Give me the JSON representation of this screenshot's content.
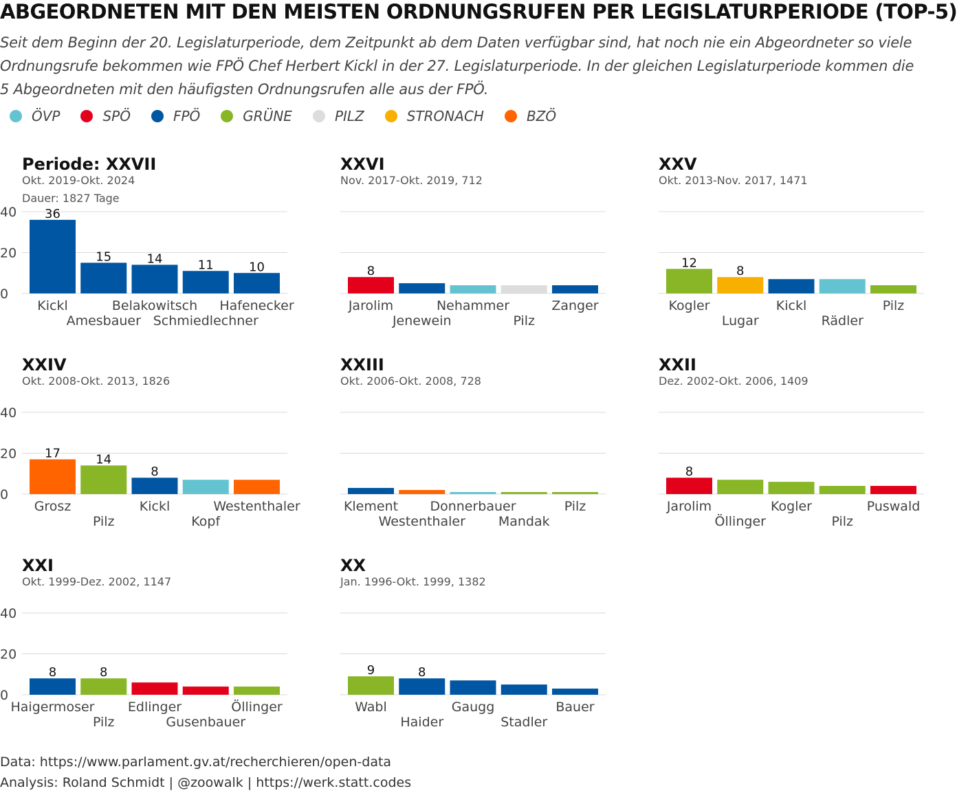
{
  "title": "ABGEORDNETEN MIT DEN MEISTEN ORDNUNGSRUFEN PER LEGISLATURPERIODE (TOP-5)",
  "subtitle": "Seit dem Beginn der 20. Legislaturperiode, dem Zeitpunkt ab dem Daten verfügbar sind, hat noch nie ein Abgeordneter so viele Ordnungsrufe bekommen wie FPÖ Chef Herbert Kickl in der 27. Legislaturperiode. In der gleichen Legislaturperiode kommen die 5 Abgeordneten mit den häufigsten Ordnungsrufen alle aus der FPÖ.",
  "legend": [
    {
      "label": "ÖVP",
      "color": "#63c3d1"
    },
    {
      "label": "SPÖ",
      "color": "#e3001b"
    },
    {
      "label": "FPÖ",
      "color": "#0056a2"
    },
    {
      "label": "GRÜNE",
      "color": "#88b626"
    },
    {
      "label": "PILZ",
      "color": "#dddddd"
    },
    {
      "label": "STRONACH",
      "color": "#f8b000"
    },
    {
      "label": "BZÖ",
      "color": "#ff6400"
    }
  ],
  "footer": {
    "data": "Data: https://www.parlament.gv.at/recherchieren/open-data",
    "analysis": "Analysis: Roland Schmidt | @zoowalk | https://werk.statt.codes"
  },
  "chart_data": [
    {
      "type": "bar",
      "title": "Periode: XXVII",
      "subtitle_lines": [
        "Okt. 2019-Okt. 2024",
        "Dauer: 1827 Tage"
      ],
      "categories": [
        "Kickl",
        "Amesbauer",
        "Belakowitsch",
        "Schmiedlechner",
        "Hafenecker"
      ],
      "values": [
        36,
        15,
        14,
        11,
        10
      ],
      "parties": [
        "FPÖ",
        "FPÖ",
        "FPÖ",
        "FPÖ",
        "FPÖ"
      ],
      "data_labels": [
        "36",
        "15",
        "14",
        "11",
        "10"
      ],
      "yticks": [
        "0",
        "20",
        "40"
      ],
      "ylim": [
        0,
        40
      ],
      "show_yaxis": true
    },
    {
      "type": "bar",
      "title": "XXVI",
      "subtitle_lines": [
        "Nov. 2017-Okt. 2019, 712"
      ],
      "categories": [
        "Jarolim",
        "Jenewein",
        "Nehammer",
        "Pilz",
        "Zanger"
      ],
      "values": [
        8,
        5,
        4,
        4,
        4
      ],
      "parties": [
        "SPÖ",
        "FPÖ",
        "ÖVP",
        "PILZ",
        "FPÖ"
      ],
      "data_labels": [
        "8",
        "",
        "",
        "",
        ""
      ],
      "ylim": [
        0,
        40
      ],
      "show_yaxis": false
    },
    {
      "type": "bar",
      "title": "XXV",
      "subtitle_lines": [
        "Okt. 2013-Nov. 2017, 1471"
      ],
      "categories": [
        "Kogler",
        "Lugar",
        "Kickl",
        "Rädler",
        "Pilz"
      ],
      "values": [
        12,
        8,
        7,
        7,
        4
      ],
      "parties": [
        "GRÜNE",
        "STRONACH",
        "FPÖ",
        "ÖVP",
        "GRÜNE"
      ],
      "data_labels": [
        "12",
        "8",
        "",
        "",
        ""
      ],
      "ylim": [
        0,
        40
      ],
      "show_yaxis": false
    },
    {
      "type": "bar",
      "title": "XXIV",
      "subtitle_lines": [
        "Okt. 2008-Okt. 2013, 1826"
      ],
      "categories": [
        "Grosz",
        "Pilz",
        "Kickl",
        "Kopf",
        "Westenthaler"
      ],
      "values": [
        17,
        14,
        8,
        7,
        7
      ],
      "parties": [
        "BZÖ",
        "GRÜNE",
        "FPÖ",
        "ÖVP",
        "BZÖ"
      ],
      "data_labels": [
        "17",
        "14",
        "8",
        "",
        ""
      ],
      "yticks": [
        "0",
        "20",
        "40"
      ],
      "ylim": [
        0,
        40
      ],
      "show_yaxis": true
    },
    {
      "type": "bar",
      "title": "XXIII",
      "subtitle_lines": [
        "Okt. 2006-Okt. 2008, 728"
      ],
      "categories": [
        "Klement",
        "Westenthaler",
        "Donnerbauer",
        "Mandak",
        "Pilz"
      ],
      "values": [
        3,
        2,
        1,
        1,
        1
      ],
      "parties": [
        "FPÖ",
        "BZÖ",
        "ÖVP",
        "GRÜNE",
        "GRÜNE"
      ],
      "data_labels": [
        "",
        "",
        "",
        "",
        ""
      ],
      "ylim": [
        0,
        40
      ],
      "show_yaxis": false
    },
    {
      "type": "bar",
      "title": "XXII",
      "subtitle_lines": [
        "Dez. 2002-Okt. 2006, 1409"
      ],
      "categories": [
        "Jarolim",
        "Öllinger",
        "Kogler",
        "Pilz",
        "Puswald"
      ],
      "values": [
        8,
        7,
        6,
        4,
        4
      ],
      "parties": [
        "SPÖ",
        "GRÜNE",
        "GRÜNE",
        "GRÜNE",
        "SPÖ"
      ],
      "data_labels": [
        "8",
        "",
        "",
        "",
        ""
      ],
      "ylim": [
        0,
        40
      ],
      "show_yaxis": false
    },
    {
      "type": "bar",
      "title": "XXI",
      "subtitle_lines": [
        "Okt. 1999-Dez. 2002, 1147"
      ],
      "categories": [
        "Haigermoser",
        "Pilz",
        "Edlinger",
        "Gusenbauer",
        "Öllinger"
      ],
      "values": [
        8,
        8,
        6,
        4,
        4
      ],
      "parties": [
        "FPÖ",
        "GRÜNE",
        "SPÖ",
        "SPÖ",
        "GRÜNE"
      ],
      "data_labels": [
        "8",
        "8",
        "",
        "",
        ""
      ],
      "yticks": [
        "0",
        "20",
        "40"
      ],
      "ylim": [
        0,
        40
      ],
      "show_yaxis": true
    },
    {
      "type": "bar",
      "title": "XX",
      "subtitle_lines": [
        "Jan. 1996-Okt. 1999, 1382"
      ],
      "categories": [
        "Wabl",
        "Haider",
        "Gaugg",
        "Stadler",
        "Bauer"
      ],
      "values": [
        9,
        8,
        7,
        5,
        3
      ],
      "parties": [
        "GRÜNE",
        "FPÖ",
        "FPÖ",
        "FPÖ",
        "FPÖ"
      ],
      "data_labels": [
        "9",
        "8",
        "",
        "",
        ""
      ],
      "ylim": [
        0,
        40
      ],
      "show_yaxis": false
    }
  ]
}
